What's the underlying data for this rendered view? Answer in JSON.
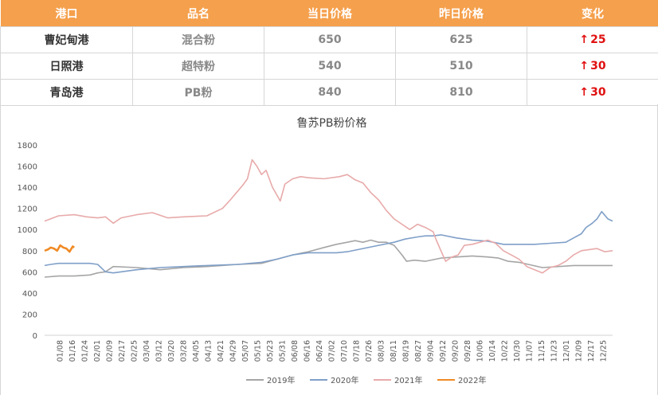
{
  "table": {
    "headers": [
      "港口",
      "品名",
      "当日价格",
      "昨日价格",
      "变化"
    ],
    "rows": [
      {
        "port": "曹妃甸港",
        "product": "混合粉",
        "today": "650",
        "yesterday": "625",
        "change": "25"
      },
      {
        "port": "日照港",
        "product": "超特粉",
        "today": "540",
        "yesterday": "510",
        "change": "30"
      },
      {
        "port": "青岛港",
        "product": "PB粉",
        "today": "840",
        "yesterday": "810",
        "change": "30"
      }
    ],
    "up_arrow": "↑"
  },
  "chart_data": {
    "type": "line",
    "title": "鲁苏PB粉价格",
    "xlabel": "",
    "ylabel": "",
    "ylim": [
      0,
      1800
    ],
    "yticks": [
      0,
      200,
      400,
      600,
      800,
      1000,
      1200,
      1400,
      1600,
      1800
    ],
    "x_day_range": [
      1,
      365
    ],
    "x_tick_labels": [
      "01/08",
      "01/16",
      "01/24",
      "02/01",
      "02/09",
      "02/17",
      "02/25",
      "03/04",
      "03/12",
      "03/20",
      "03/28",
      "04/05",
      "04/13",
      "04/21",
      "04/29",
      "05/07",
      "05/15",
      "05/23",
      "05/31",
      "06/08",
      "06/16",
      "06/24",
      "07/02",
      "07/10",
      "07/18",
      "07/26",
      "08/03",
      "08/11",
      "08/19",
      "08/27",
      "09/04",
      "09/12",
      "09/20",
      "09/28",
      "10/06",
      "10/14",
      "10/22",
      "10/30",
      "11/07",
      "11/15",
      "11/23",
      "12/01",
      "12/09",
      "12/17",
      "12/25"
    ],
    "grid": false,
    "legend_position": "bottom",
    "colors": {
      "2019年": "#A5A5A5",
      "2020年": "#7F9FC8",
      "2021年": "#E8AAAA",
      "2022年": "#F08A24",
      "table_header": "#F5A04C",
      "change_text": "#E01010"
    },
    "series": [
      {
        "name": "2019年",
        "x": [
          1,
          10,
          20,
          30,
          35,
          40,
          45,
          60,
          75,
          90,
          105,
          125,
          140,
          150,
          160,
          170,
          180,
          188,
          195,
          200,
          205,
          210,
          215,
          220,
          225,
          230,
          233,
          238,
          245,
          255,
          265,
          275,
          285,
          292,
          298,
          305,
          320,
          340,
          355,
          365
        ],
        "y": [
          550,
          560,
          560,
          570,
          590,
          600,
          650,
          640,
          620,
          640,
          650,
          670,
          680,
          720,
          760,
          790,
          830,
          860,
          880,
          895,
          880,
          900,
          880,
          880,
          850,
          760,
          700,
          710,
          700,
          730,
          740,
          750,
          740,
          730,
          700,
          690,
          640,
          660,
          660,
          660
        ]
      },
      {
        "name": "2020年",
        "x": [
          1,
          5,
          10,
          20,
          30,
          35,
          40,
          45,
          60,
          75,
          90,
          105,
          125,
          140,
          150,
          160,
          170,
          180,
          188,
          195,
          205,
          215,
          225,
          232,
          240,
          245,
          250,
          255,
          265,
          275,
          285,
          295,
          305,
          315,
          325,
          335,
          340,
          345,
          348,
          352,
          355,
          358,
          362,
          365
        ],
        "y": [
          660,
          670,
          680,
          680,
          680,
          670,
          600,
          590,
          620,
          640,
          650,
          660,
          670,
          690,
          720,
          760,
          780,
          780,
          780,
          790,
          820,
          850,
          880,
          910,
          930,
          940,
          940,
          950,
          920,
          900,
          890,
          860,
          860,
          860,
          870,
          880,
          920,
          960,
          1020,
          1060,
          1100,
          1170,
          1100,
          1080
        ]
      },
      {
        "name": "2021年",
        "x": [
          1,
          10,
          20,
          28,
          35,
          40,
          45,
          50,
          60,
          70,
          80,
          90,
          105,
          115,
          120,
          124,
          128,
          131,
          134,
          137,
          140,
          143,
          147,
          152,
          155,
          160,
          165,
          170,
          180,
          190,
          195,
          200,
          205,
          210,
          215,
          220,
          225,
          230,
          235,
          240,
          245,
          250,
          252,
          255,
          258,
          262,
          266,
          270,
          275,
          280,
          285,
          290,
          295,
          300,
          305,
          310,
          315,
          320,
          325,
          330,
          335,
          340,
          345,
          350,
          355,
          360,
          365
        ],
        "y": [
          1080,
          1130,
          1140,
          1120,
          1110,
          1120,
          1060,
          1110,
          1140,
          1160,
          1110,
          1120,
          1130,
          1200,
          1280,
          1350,
          1420,
          1480,
          1660,
          1600,
          1520,
          1560,
          1400,
          1270,
          1430,
          1480,
          1500,
          1490,
          1480,
          1500,
          1520,
          1470,
          1440,
          1350,
          1280,
          1180,
          1100,
          1050,
          1000,
          1050,
          1020,
          980,
          900,
          800,
          700,
          740,
          760,
          850,
          860,
          880,
          900,
          870,
          800,
          760,
          720,
          650,
          620,
          590,
          640,
          660,
          700,
          760,
          800,
          810,
          820,
          790,
          800
        ]
      },
      {
        "name": "2022年",
        "x": [
          1,
          3,
          5,
          7,
          9,
          11,
          13,
          15,
          17,
          19,
          20
        ],
        "y": [
          800,
          810,
          830,
          820,
          800,
          850,
          830,
          820,
          790,
          840,
          830
        ]
      }
    ]
  }
}
